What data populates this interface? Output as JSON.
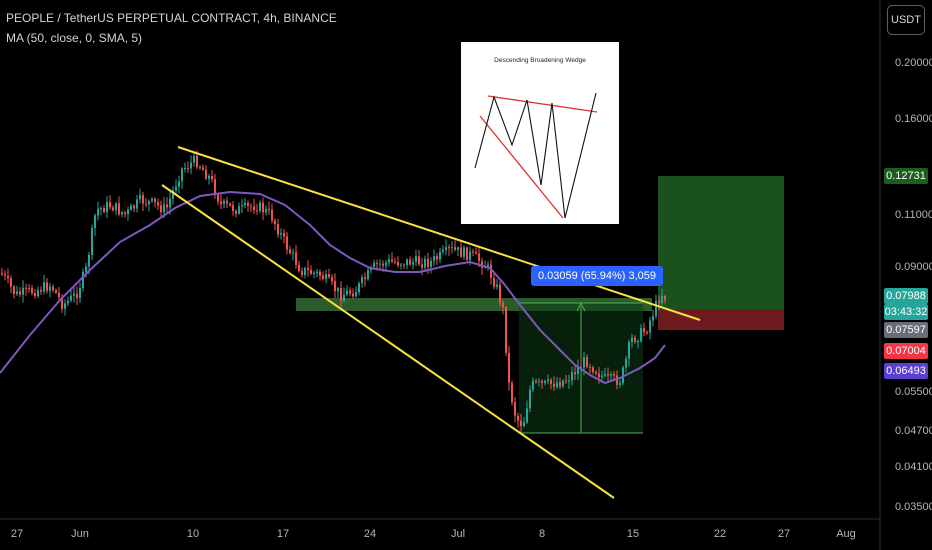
{
  "header": {
    "symbol_line": "PEOPLE / TetherUS PERPETUAL CONTRACT, 4h, BINANCE",
    "indicator_line": "MA (50, close, 0, SMA, 5)"
  },
  "currency_button": "USDT",
  "measure_label": "0.03059 (65.94%) 3,059",
  "inset": {
    "title": "Descending Broadening Wedge"
  },
  "price_badges": [
    {
      "value": "0.12731",
      "color": "#1b5e20"
    },
    {
      "value": "0.07988",
      "color": "#26a69a"
    },
    {
      "value": "03:43:32",
      "color": "#26a69a"
    },
    {
      "value": "0.07597",
      "color": "#6a6d78"
    },
    {
      "value": "0.07004",
      "color": "#f23645"
    },
    {
      "value": "0.06493",
      "color": "#5b3fd0"
    }
  ],
  "colors": {
    "up": "#26a69a",
    "down": "#ef5350",
    "ma": "#7e57c2",
    "trendline": "#f7e33d",
    "zone": "#3a7a3a"
  },
  "chart_data": {
    "type": "candlestick",
    "xlabel": "",
    "ylabel": "",
    "y_scale": "log",
    "ylim": [
      0.0335,
      0.23
    ],
    "x_ticks": [
      "27",
      "Jun",
      "10",
      "17",
      "24",
      "Jul",
      "8",
      "15",
      "22",
      "27",
      "Aug"
    ],
    "y_ticks": [
      "0.20000",
      "0.16000",
      "0.11000",
      "0.09000",
      "0.05500",
      "0.04700",
      "0.04100",
      "0.03500"
    ],
    "last_price": 0.07988,
    "position": {
      "entry": 0.07597,
      "target": 0.12731,
      "stop": 0.07004
    },
    "measure": {
      "change": 0.03059,
      "percent": 65.94,
      "ticks": 3059
    }
  }
}
